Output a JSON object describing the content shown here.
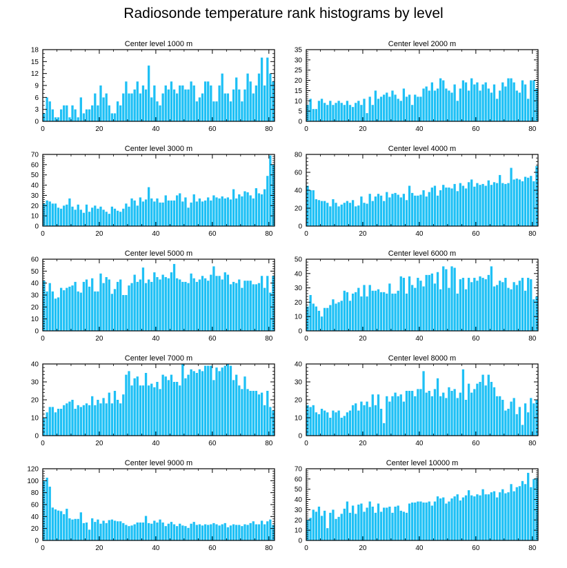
{
  "figure": {
    "title": "Radiosonde temperature rank histograms by level",
    "bar_color": "#1ec0f5"
  },
  "chart_data": [
    {
      "type": "bar",
      "title": "Center level 1000 m",
      "xlim": [
        0,
        82
      ],
      "ylim": [
        0,
        18
      ],
      "xticks": [
        0,
        20,
        40,
        60,
        80
      ],
      "yticks": [
        0,
        3,
        6,
        9,
        12,
        15,
        18
      ],
      "values": [
        2,
        6,
        5,
        3,
        1,
        1,
        3,
        4,
        4,
        1,
        4,
        3,
        1,
        6,
        2,
        3,
        3,
        4,
        7,
        4,
        9,
        6,
        7,
        4,
        2,
        2,
        5,
        4,
        7,
        10,
        7,
        7,
        8,
        10,
        7,
        9,
        8,
        14,
        6,
        9,
        5,
        4,
        7,
        9,
        8,
        10,
        8,
        7,
        9,
        9,
        8,
        8,
        10,
        9,
        5,
        6,
        7,
        10,
        10,
        9,
        5,
        5,
        9,
        12,
        7,
        7,
        5,
        8,
        11,
        8,
        5,
        8,
        12,
        10,
        7,
        9,
        12,
        16,
        9,
        16,
        12,
        10
      ]
    },
    {
      "type": "bar",
      "title": "Center level 2000 m",
      "xlim": [
        0,
        82
      ],
      "ylim": [
        0,
        35
      ],
      "xticks": [
        0,
        20,
        40,
        60,
        80
      ],
      "yticks": [
        0,
        5,
        10,
        15,
        20,
        25,
        30,
        35
      ],
      "values": [
        8,
        11,
        6,
        6,
        10,
        11,
        9,
        8,
        10,
        8,
        9,
        10,
        9,
        8,
        10,
        8,
        7,
        9,
        10,
        8,
        11,
        4,
        12,
        8,
        15,
        11,
        12,
        13,
        14,
        12,
        15,
        13,
        11,
        10,
        16,
        12,
        13,
        8,
        13,
        12,
        12,
        16,
        17,
        15,
        19,
        15,
        16,
        21,
        20,
        16,
        15,
        14,
        18,
        10,
        16,
        20,
        19,
        15,
        21,
        18,
        19,
        15,
        18,
        19,
        16,
        14,
        18,
        11,
        15,
        19,
        17,
        21,
        21,
        19,
        15,
        14,
        20,
        18,
        11,
        20,
        20,
        16
      ]
    },
    {
      "type": "bar",
      "title": "Center level 3000 m",
      "xlim": [
        0,
        82
      ],
      "ylim": [
        0,
        70
      ],
      "xticks": [
        0,
        20,
        40,
        60,
        80
      ],
      "yticks": [
        0,
        10,
        20,
        30,
        40,
        50,
        60,
        70
      ],
      "values": [
        22,
        25,
        24,
        22,
        22,
        18,
        17,
        20,
        21,
        27,
        19,
        16,
        21,
        16,
        13,
        21,
        14,
        18,
        20,
        17,
        19,
        16,
        14,
        12,
        19,
        17,
        15,
        14,
        17,
        22,
        19,
        27,
        25,
        20,
        28,
        24,
        26,
        38,
        27,
        24,
        27,
        23,
        23,
        30,
        25,
        25,
        25,
        30,
        32,
        24,
        28,
        18,
        23,
        31,
        24,
        27,
        24,
        25,
        28,
        25,
        30,
        28,
        27,
        29,
        27,
        28,
        26,
        36,
        27,
        31,
        29,
        34,
        33,
        30,
        27,
        37,
        32,
        31,
        36,
        49,
        69,
        60
      ]
    },
    {
      "type": "bar",
      "title": "Center level 4000 m",
      "xlim": [
        0,
        82
      ],
      "ylim": [
        0,
        80
      ],
      "xticks": [
        0,
        20,
        40,
        60,
        80
      ],
      "yticks": [
        0,
        20,
        40,
        60,
        80
      ],
      "values": [
        45,
        40,
        40,
        30,
        29,
        28,
        28,
        26,
        22,
        30,
        26,
        22,
        24,
        26,
        28,
        26,
        29,
        22,
        23,
        33,
        26,
        25,
        36,
        28,
        33,
        36,
        34,
        28,
        38,
        32,
        36,
        37,
        35,
        32,
        36,
        29,
        45,
        37,
        34,
        34,
        35,
        40,
        33,
        38,
        43,
        45,
        34,
        40,
        46,
        43,
        43,
        42,
        47,
        39,
        48,
        45,
        42,
        49,
        52,
        44,
        48,
        46,
        47,
        45,
        51,
        46,
        49,
        48,
        57,
        48,
        47,
        48,
        65,
        52,
        53,
        52,
        50,
        55,
        54,
        56,
        50,
        67
      ]
    },
    {
      "type": "bar",
      "title": "Center level 5000 m",
      "xlim": [
        0,
        82
      ],
      "ylim": [
        0,
        60
      ],
      "xticks": [
        0,
        20,
        40,
        60,
        80
      ],
      "yticks": [
        0,
        10,
        20,
        30,
        40,
        50,
        60
      ],
      "values": [
        42,
        33,
        40,
        33,
        27,
        28,
        36,
        34,
        36,
        37,
        38,
        41,
        33,
        32,
        41,
        43,
        37,
        44,
        33,
        33,
        48,
        40,
        45,
        43,
        31,
        35,
        41,
        43,
        30,
        30,
        38,
        40,
        47,
        41,
        43,
        53,
        40,
        43,
        41,
        49,
        45,
        43,
        47,
        45,
        44,
        49,
        56,
        44,
        43,
        41,
        41,
        40,
        48,
        44,
        41,
        43,
        46,
        44,
        42,
        47,
        54,
        46,
        46,
        43,
        49,
        47,
        39,
        41,
        40,
        43,
        36,
        42,
        42,
        42,
        39,
        39,
        40,
        46,
        36,
        46,
        32,
        46
      ]
    },
    {
      "type": "bar",
      "title": "Center level 6000 m",
      "xlim": [
        0,
        82
      ],
      "ylim": [
        0,
        50
      ],
      "xticks": [
        0,
        20,
        40,
        60,
        80
      ],
      "yticks": [
        0,
        10,
        20,
        30,
        40,
        50
      ],
      "values": [
        17,
        25,
        19,
        17,
        14,
        10,
        16,
        16,
        18,
        22,
        19,
        20,
        21,
        28,
        27,
        21,
        26,
        27,
        30,
        24,
        32,
        24,
        32,
        28,
        28,
        29,
        27,
        27,
        26,
        33,
        26,
        26,
        28,
        38,
        37,
        26,
        38,
        32,
        30,
        37,
        35,
        31,
        39,
        39,
        40,
        33,
        41,
        29,
        45,
        43,
        30,
        45,
        44,
        26,
        36,
        37,
        29,
        37,
        34,
        37,
        35,
        38,
        37,
        36,
        39,
        45,
        31,
        32,
        35,
        34,
        37,
        30,
        29,
        34,
        32,
        35,
        37,
        28,
        37,
        36,
        22,
        24
      ]
    },
    {
      "type": "bar",
      "title": "Center level 7000 m",
      "xlim": [
        0,
        82
      ],
      "ylim": [
        0,
        40
      ],
      "xticks": [
        0,
        20,
        40,
        60,
        80
      ],
      "yticks": [
        0,
        10,
        20,
        30,
        40
      ],
      "values": [
        10,
        13,
        16,
        16,
        13,
        15,
        15,
        17,
        18,
        19,
        20,
        15,
        17,
        16,
        17,
        18,
        17,
        22,
        17,
        20,
        18,
        21,
        18,
        24,
        18,
        25,
        20,
        18,
        23,
        34,
        36,
        28,
        32,
        33,
        28,
        28,
        35,
        28,
        29,
        27,
        30,
        26,
        34,
        33,
        31,
        34,
        30,
        30,
        28,
        40,
        32,
        34,
        37,
        36,
        35,
        37,
        36,
        39,
        39,
        39,
        31,
        38,
        36,
        38,
        39,
        40,
        39,
        31,
        34,
        28,
        26,
        33,
        26,
        25,
        25,
        25,
        23,
        24,
        17,
        25,
        16,
        14
      ]
    },
    {
      "type": "bar",
      "title": "Center level 8000 m",
      "xlim": [
        0,
        82
      ],
      "ylim": [
        0,
        40
      ],
      "xticks": [
        0,
        20,
        40,
        60,
        80
      ],
      "yticks": [
        0,
        10,
        20,
        30,
        40
      ],
      "values": [
        17,
        16,
        17,
        13,
        12,
        15,
        14,
        13,
        10,
        14,
        13,
        14,
        10,
        11,
        13,
        14,
        17,
        18,
        14,
        19,
        17,
        19,
        16,
        23,
        17,
        23,
        15,
        7,
        22,
        19,
        22,
        24,
        22,
        23,
        19,
        25,
        25,
        25,
        22,
        26,
        26,
        36,
        24,
        25,
        22,
        26,
        32,
        22,
        24,
        21,
        27,
        25,
        26,
        21,
        24,
        37,
        20,
        29,
        24,
        26,
        29,
        30,
        34,
        28,
        34,
        30,
        27,
        22,
        22,
        20,
        14,
        15,
        19,
        21,
        12,
        16,
        6,
        18,
        13,
        21,
        18,
        20
      ]
    },
    {
      "type": "bar",
      "title": "Center level 9000 m",
      "xlim": [
        0,
        82
      ],
      "ylim": [
        0,
        120
      ],
      "xticks": [
        0,
        20,
        40,
        60,
        80
      ],
      "yticks": [
        0,
        20,
        40,
        60,
        80,
        100,
        120
      ],
      "values": [
        100,
        105,
        90,
        55,
        52,
        50,
        49,
        44,
        53,
        37,
        35,
        36,
        36,
        47,
        29,
        30,
        18,
        37,
        31,
        35,
        28,
        33,
        29,
        34,
        35,
        33,
        32,
        32,
        29,
        26,
        24,
        25,
        27,
        30,
        30,
        30,
        41,
        29,
        28,
        33,
        30,
        35,
        30,
        24,
        28,
        31,
        27,
        24,
        28,
        25,
        24,
        21,
        28,
        31,
        26,
        27,
        25,
        27,
        26,
        27,
        29,
        27,
        25,
        27,
        29,
        22,
        25,
        27,
        26,
        26,
        24,
        27,
        26,
        29,
        32,
        27,
        27,
        33,
        27,
        32,
        35,
        26
      ]
    },
    {
      "type": "bar",
      "title": "Center level 10000 m",
      "xlim": [
        0,
        82
      ],
      "ylim": [
        0,
        70
      ],
      "xticks": [
        0,
        20,
        40,
        60,
        80
      ],
      "yticks": [
        0,
        10,
        20,
        30,
        40,
        50,
        60,
        70
      ],
      "values": [
        20,
        22,
        30,
        28,
        33,
        24,
        29,
        12,
        27,
        30,
        21,
        23,
        26,
        31,
        38,
        27,
        34,
        26,
        35,
        36,
        28,
        32,
        38,
        33,
        27,
        36,
        28,
        32,
        32,
        33,
        27,
        33,
        34,
        29,
        28,
        27,
        36,
        37,
        37,
        38,
        38,
        37,
        37,
        38,
        34,
        38,
        43,
        41,
        42,
        36,
        38,
        41,
        43,
        45,
        39,
        42,
        44,
        49,
        44,
        43,
        45,
        44,
        50,
        45,
        45,
        47,
        48,
        42,
        47,
        50,
        46,
        47,
        55,
        48,
        52,
        53,
        58,
        55,
        66,
        52,
        60,
        61
      ]
    }
  ]
}
